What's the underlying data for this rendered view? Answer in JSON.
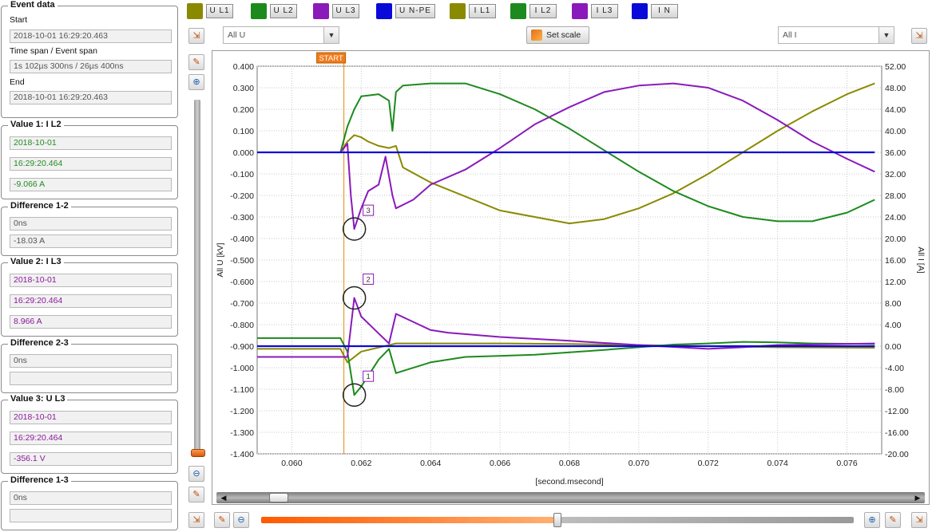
{
  "event_data": {
    "title": "Event data",
    "start_label": "Start",
    "start_value": "2018-10-01 16:29:20.463",
    "span_label": "Time span / Event span",
    "span_value": "1s 102µs 300ns / 26µs 400ns",
    "end_label": "End",
    "end_value": "2018-10-01 16:29:20.463"
  },
  "value1": {
    "title": "Value 1: I L2",
    "date": "2018-10-01",
    "time": "16:29:20.464",
    "value": "-9.066 A"
  },
  "diff12": {
    "title": "Difference 1-2",
    "time": "0ns",
    "value": "-18.03 A"
  },
  "value2": {
    "title": "Value 2: I L3",
    "date": "2018-10-01",
    "time": "16:29:20.464",
    "value": "8.966 A"
  },
  "diff23": {
    "title": "Difference 2-3",
    "time": "0ns",
    "value": ""
  },
  "value3": {
    "title": "Value 3: U L3",
    "date": "2018-10-01",
    "time": "16:29:20.464",
    "value": "-356.1 V"
  },
  "diff13": {
    "title": "Difference 1-3",
    "time": "0ns",
    "value": ""
  },
  "legend": [
    {
      "label": "U L1",
      "color": "#8a8a00"
    },
    {
      "label": "U L2",
      "color": "#1d8a1d"
    },
    {
      "label": "U L3",
      "color": "#8a1aba"
    },
    {
      "label": "U N-PE",
      "color": "#0a0ad8"
    },
    {
      "label": "I L1",
      "color": "#8a8a00"
    },
    {
      "label": "I L2",
      "color": "#1d8a1d"
    },
    {
      "label": "I L3",
      "color": "#8a1aba"
    },
    {
      "label": "I N",
      "color": "#0a0ad8"
    }
  ],
  "toolbar": {
    "left_select": "All U",
    "right_select": "All I",
    "set_scale_label": "Set scale"
  },
  "chart_data": {
    "type": "line",
    "xlabel": "[second.msecond]",
    "ylabel_left": "All U [kV]",
    "ylabel_right": "All I [A]",
    "xlim": [
      0.059,
      0.077
    ],
    "ylim_left": [
      -1.4,
      0.4
    ],
    "ylim_right": [
      -20,
      52
    ],
    "x_ticks": [
      "0.060",
      "0.062",
      "0.064",
      "0.066",
      "0.068",
      "0.070",
      "0.072",
      "0.074",
      "0.076"
    ],
    "left_ticks": [
      "0.400",
      "0.300",
      "0.200",
      "0.100",
      "0.000",
      "-0.100",
      "-0.200",
      "-0.300",
      "-0.400",
      "-0.500",
      "-0.600",
      "-0.700",
      "-0.800",
      "-0.900",
      "-1.000",
      "-1.100",
      "-1.200",
      "-1.300",
      "-1.400"
    ],
    "right_ticks": [
      "52.00",
      "48.00",
      "44.00",
      "40.00",
      "36.00",
      "32.00",
      "28.00",
      "24.00",
      "20.00",
      "16.00",
      "12.00",
      "8.00",
      "4.00",
      "0.00",
      "-4.00",
      "-8.00",
      "-12.00",
      "-16.00",
      "-20.00"
    ],
    "grid": true,
    "start_marker": {
      "label": "START",
      "x": 0.0615
    },
    "markers": [
      {
        "label": "3",
        "x": 0.0618,
        "y_kv": -0.356
      },
      {
        "label": "2",
        "x": 0.0618,
        "y_a": 8.966
      },
      {
        "label": "1",
        "x": 0.0618,
        "y_a": -9.066
      }
    ],
    "series": [
      {
        "name": "U L1",
        "axis": "left",
        "color": "#8a8a00",
        "points": [
          [
            0.0605,
            0.0
          ],
          [
            0.0614,
            0.0
          ],
          [
            0.0616,
            0.05
          ],
          [
            0.0618,
            0.08
          ],
          [
            0.062,
            0.07
          ],
          [
            0.0622,
            0.05
          ],
          [
            0.0625,
            0.03
          ],
          [
            0.0628,
            0.02
          ],
          [
            0.063,
            0.03
          ],
          [
            0.0632,
            -0.07
          ],
          [
            0.064,
            -0.14
          ],
          [
            0.066,
            -0.27
          ],
          [
            0.068,
            -0.33
          ],
          [
            0.069,
            -0.31
          ],
          [
            0.07,
            -0.26
          ],
          [
            0.071,
            -0.19
          ],
          [
            0.072,
            -0.1
          ],
          [
            0.073,
            0.0
          ],
          [
            0.074,
            0.1
          ],
          [
            0.075,
            0.19
          ],
          [
            0.076,
            0.27
          ],
          [
            0.0768,
            0.32
          ]
        ]
      },
      {
        "name": "U L2",
        "axis": "left",
        "color": "#1d8a1d",
        "points": [
          [
            0.0614,
            0.0
          ],
          [
            0.0616,
            0.12
          ],
          [
            0.0618,
            0.2
          ],
          [
            0.062,
            0.26
          ],
          [
            0.0625,
            0.27
          ],
          [
            0.0628,
            0.24
          ],
          [
            0.0629,
            0.1
          ],
          [
            0.063,
            0.28
          ],
          [
            0.0632,
            0.31
          ],
          [
            0.064,
            0.32
          ],
          [
            0.065,
            0.32
          ],
          [
            0.066,
            0.27
          ],
          [
            0.067,
            0.2
          ],
          [
            0.068,
            0.11
          ],
          [
            0.069,
            0.01
          ],
          [
            0.07,
            -0.09
          ],
          [
            0.071,
            -0.18
          ],
          [
            0.072,
            -0.25
          ],
          [
            0.073,
            -0.3
          ],
          [
            0.074,
            -0.32
          ],
          [
            0.075,
            -0.32
          ],
          [
            0.076,
            -0.28
          ],
          [
            0.0768,
            -0.22
          ]
        ]
      },
      {
        "name": "U L3",
        "axis": "left",
        "color": "#8a1aba",
        "points": [
          [
            0.0614,
            0.0
          ],
          [
            0.0616,
            0.04
          ],
          [
            0.0617,
            -0.2
          ],
          [
            0.0618,
            -0.356
          ],
          [
            0.062,
            -0.26
          ],
          [
            0.0622,
            -0.18
          ],
          [
            0.0625,
            -0.15
          ],
          [
            0.0627,
            -0.02
          ],
          [
            0.0629,
            -0.2
          ],
          [
            0.063,
            -0.26
          ],
          [
            0.0635,
            -0.22
          ],
          [
            0.064,
            -0.15
          ],
          [
            0.065,
            -0.08
          ],
          [
            0.066,
            0.02
          ],
          [
            0.067,
            0.13
          ],
          [
            0.068,
            0.21
          ],
          [
            0.069,
            0.28
          ],
          [
            0.07,
            0.31
          ],
          [
            0.071,
            0.32
          ],
          [
            0.072,
            0.3
          ],
          [
            0.073,
            0.24
          ],
          [
            0.074,
            0.15
          ],
          [
            0.075,
            0.05
          ],
          [
            0.076,
            -0.03
          ],
          [
            0.0768,
            -0.09
          ]
        ]
      },
      {
        "name": "U N-PE",
        "axis": "left",
        "color": "#0a0ad8",
        "points": [
          [
            0.059,
            0.0
          ],
          [
            0.0768,
            0.0
          ]
        ]
      },
      {
        "name": "I L1",
        "axis": "right",
        "color": "#8a8a00",
        "points": [
          [
            0.059,
            -0.5
          ],
          [
            0.0614,
            -0.5
          ],
          [
            0.0616,
            -3.0
          ],
          [
            0.062,
            -1.0
          ],
          [
            0.063,
            0.5
          ],
          [
            0.064,
            0.5
          ],
          [
            0.066,
            0.5
          ],
          [
            0.068,
            0.4
          ],
          [
            0.07,
            0.2
          ],
          [
            0.072,
            0.0
          ],
          [
            0.074,
            -0.2
          ],
          [
            0.0768,
            -0.3
          ]
        ]
      },
      {
        "name": "I L2",
        "axis": "right",
        "color": "#1d8a1d",
        "points": [
          [
            0.059,
            1.5
          ],
          [
            0.0614,
            1.5
          ],
          [
            0.0616,
            -1.0
          ],
          [
            0.0618,
            -9.066
          ],
          [
            0.062,
            -7.5
          ],
          [
            0.0625,
            -2.5
          ],
          [
            0.0628,
            -0.5
          ],
          [
            0.063,
            -5.0
          ],
          [
            0.064,
            -3.0
          ],
          [
            0.065,
            -2.0
          ],
          [
            0.067,
            -1.6
          ],
          [
            0.069,
            -0.7
          ],
          [
            0.071,
            0.3
          ],
          [
            0.072,
            0.5
          ],
          [
            0.073,
            0.8
          ],
          [
            0.074,
            0.7
          ],
          [
            0.075,
            0.5
          ],
          [
            0.0768,
            0.4
          ]
        ]
      },
      {
        "name": "I L3",
        "axis": "right",
        "color": "#8a1aba",
        "points": [
          [
            0.059,
            -2.0
          ],
          [
            0.0614,
            -2.0
          ],
          [
            0.0616,
            -2.0
          ],
          [
            0.0618,
            8.966
          ],
          [
            0.062,
            5.5
          ],
          [
            0.0624,
            3.0
          ],
          [
            0.0628,
            0.5
          ],
          [
            0.063,
            6.0
          ],
          [
            0.0635,
            4.5
          ],
          [
            0.064,
            3.0
          ],
          [
            0.0645,
            2.5
          ],
          [
            0.066,
            1.7
          ],
          [
            0.068,
            1.0
          ],
          [
            0.07,
            0.2
          ],
          [
            0.072,
            -0.5
          ],
          [
            0.073,
            -0.2
          ],
          [
            0.074,
            0.2
          ],
          [
            0.0768,
            0.5
          ]
        ]
      },
      {
        "name": "I N",
        "axis": "right",
        "color": "#0a0ad8",
        "points": [
          [
            0.059,
            0.0
          ],
          [
            0.0768,
            0.0
          ]
        ]
      }
    ]
  }
}
